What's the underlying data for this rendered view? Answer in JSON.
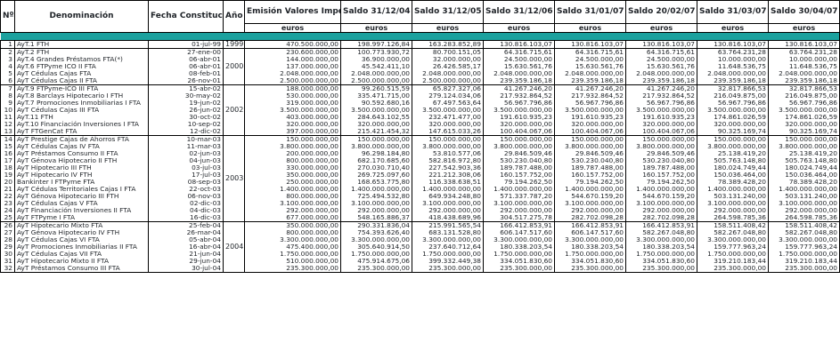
{
  "headers": {
    "num": "Nº",
    "denominacion": "Denominación",
    "fecha": "Fecha Constitución",
    "anio": "Año",
    "emision": "Emisión Valores Importe Inicial",
    "saldo1": "Saldo 31/12/04",
    "saldo2": "Saldo 31/12/05",
    "saldo3": "Saldo 31/12/06",
    "saldo4": "Saldo 31/01/07",
    "saldo5": "Saldo 20/02/07",
    "saldo6": "Saldo 31/03/07",
    "saldo7": "Saldo 30/04/07"
  },
  "unit": "euros",
  "accent_color": "#1ba19e",
  "groups": [
    {
      "year": "1999",
      "rows": [
        [
          "1",
          "AyT.1 FTH",
          "01-jul-99",
          "470.500.000,00",
          "198.997.126,84",
          "163.283.852,89",
          "130.816.103,07",
          "130.816.103,07",
          "130.816.103,07",
          "130.816.103,07",
          "130.816.103,07"
        ]
      ]
    },
    {
      "year": "2000",
      "rows": [
        [
          "2",
          "AyT.2 FTH",
          "27-ene-00",
          "230.600.000,00",
          "100.773.930,72",
          "80.700.151,05",
          "64.316.715,61",
          "64.316.715,61",
          "64.316.715,61",
          "63.764.231,28",
          "63.764.231,28"
        ],
        [
          "3",
          "AyT.4 Grandes Préstamos FTA(*)",
          "06-abr-01",
          "144.000.000,00",
          "36.900.000,00",
          "32.000.000,00",
          "24.500.000,00",
          "24.500.000,00",
          "24.500.000,00",
          "10.000.000,00",
          "10.000.000,00"
        ],
        [
          "4",
          "AyT.6 FTPyme ICO II FTA",
          "06-abr-01",
          "137.000.000,00",
          "45.542.411,10",
          "26.426.585,17",
          "15.630.561,76",
          "15.630.561,76",
          "15.630.561,76",
          "11.648.536,75",
          "11.648.536,75"
        ],
        [
          "5",
          "AyT Cédulas Cajas FTA",
          "08-feb-01",
          "2.048.000.000,00",
          "2.048.000.000,00",
          "2.048.000.000,00",
          "2.048.000.000,00",
          "2.048.000.000,00",
          "2.048.000.000,00",
          "2.048.000.000,00",
          "2.048.000.000,00"
        ],
        [
          "6",
          "AyT Cédulas Cajas II FTA",
          "26-nov-01",
          "2.500.000.000,00",
          "2.500.000.000,00",
          "2.500.000.000,00",
          "239.359.186,18",
          "239.359.186,18",
          "239.359.186,18",
          "239.359.186,18",
          "239.359.186,18"
        ]
      ]
    },
    {
      "year": "2002",
      "rows": [
        [
          "7",
          "AyT.9 FTPyme-ICO III FTA",
          "15-abr-02",
          "188.000.000,00",
          "99.260.515,59",
          "65.827.327,06",
          "41.267.246,20",
          "41.267.246,20",
          "41.267.246,20",
          "32.817.866,53",
          "32.817.866,53"
        ],
        [
          "8",
          "AyT.8 Barclays Hipotecario I FTH",
          "30-may-02",
          "530.000.000,00",
          "335.471.715,00",
          "279.124.034,06",
          "217.932.864,52",
          "217.932.864,52",
          "217.932.864,52",
          "216.049.875,00",
          "216.049.875,00"
        ],
        [
          "9",
          "AyT.7 Promociones Inmobiliarias I FTA",
          "19-jun-02",
          "319.000.000,00",
          "90.592.680,16",
          "67.497.563,64",
          "56.967.796,86",
          "56.967.796,86",
          "56.967.796,86",
          "56.967.796,86",
          "56.967.796,86"
        ],
        [
          "10",
          "AyT Cédulas Cajas III FTA",
          "26-jun-02",
          "3.500.000.000,00",
          "3.500.000.000,00",
          "3.500.000.000,00",
          "3.500.000.000,00",
          "3.500.000.000,00",
          "3.500.000.000,00",
          "3.500.000.000,00",
          "3.500.000.000,00"
        ],
        [
          "11",
          "AyT.11 FTH",
          "30-oct-02",
          "403.000.000,00",
          "284.643.102,55",
          "232.471.477,00",
          "191.610.935,23",
          "191.610.935,23",
          "191.610.935,23",
          "174.861.026,59",
          "174.861.026,59"
        ],
        [
          "12",
          "AyT.10 Financiación Inversiones I FTA",
          "10-sep-02",
          "320.000.000,00",
          "320.000.000,00",
          "320.000.000,00",
          "320.000.000,00",
          "320.000.000,00",
          "320.000.000,00",
          "320.000.000,00",
          "320.000.000,00"
        ],
        [
          "13",
          "AyT FTGenCat FTA",
          "12-dic-02",
          "397.000.000,00",
          "215.421.454,32",
          "147.615.033,26",
          "100.404.067,06",
          "100.404.067,06",
          "100.404.067,06",
          "90.325.169,74",
          "90.325.169,74"
        ]
      ]
    },
    {
      "year": "2003",
      "rows": [
        [
          "14",
          "AyT Prestige Cajas de Ahorros FTA",
          "10-mar-03",
          "150.000.000,00",
          "150.000.000,00",
          "150.000.000,00",
          "150.000.000,00",
          "150.000.000,00",
          "150.000.000,00",
          "150.000.000,00",
          "150.000.000,00"
        ],
        [
          "15",
          "AyT Cédulas Cajas IV FTA",
          "11-mar-03",
          "3.800.000.000,00",
          "3.800.000.000,00",
          "3.800.000.000,00",
          "3.800.000.000,00",
          "3.800.000.000,00",
          "3.800.000.000,00",
          "3.800.000.000,00",
          "3.800.000.000,00"
        ],
        [
          "16",
          "AyT Préstamos Consumo II FTA",
          "02-jun-03",
          "200.000.000,00",
          "96.298.184,80",
          "53.810.577,06",
          "29.846.509,46",
          "29.846.509,46",
          "29.846.509,46",
          "25.138.419,20",
          "25.138.419,20"
        ],
        [
          "17",
          "AyT Génova Hipotecario II FTH",
          "04-jun-03",
          "800.000.000,00",
          "682.170.685,60",
          "582.816.972,80",
          "530.230.040,80",
          "530.230.040,80",
          "530.230.040,80",
          "505.763.148,80",
          "505.763.148,80"
        ],
        [
          "18",
          "AyT Hipotecario III FTH",
          "03-jul-03",
          "330.000.000,00",
          "270.030.710,40",
          "227.542.903,36",
          "189.787.488,00",
          "189.787.488,00",
          "189.787.488,00",
          "180.024.749,44",
          "180.024.749,44"
        ],
        [
          "19",
          "AyT Hipotecario IV FTH",
          "17-jul-03",
          "350.000.000,00",
          "269.725.097,60",
          "221.212.308,06",
          "160.157.752,00",
          "160.157.752,00",
          "160.157.752,00",
          "150.036.464,00",
          "150.036.464,00"
        ],
        [
          "20",
          "Bankinter I FTPyme FTA",
          "08-sep-03",
          "250.000.000,00",
          "168.653.775,80",
          "116.338.638,51",
          "79.194.262,50",
          "79.194.262,50",
          "79.194.262,50",
          "78.389.428,20",
          "78.389.428,20"
        ],
        [
          "21",
          "AyT Cédulas Territoriales Cajas I FTA",
          "22-oct-03",
          "1.400.000.000,00",
          "1.400.000.000,00",
          "1.400.000.000,00",
          "1.400.000.000,00",
          "1.400.000.000,00",
          "1.400.000.000,00",
          "1.400.000.000,00",
          "1.400.000.000,00"
        ],
        [
          "22",
          "AyT Génova Hipotecario III FTH",
          "06-nov-03",
          "800.000.000,00",
          "725.494.532,80",
          "649.934.248,80",
          "571.337.787,20",
          "544.670.159,20",
          "544.670.159,20",
          "503.131.240,00",
          "503.131.240,00"
        ],
        [
          "23",
          "AyT Cédulas Cajas V FTA",
          "02-dic-03",
          "3.100.000.000,00",
          "3.100.000.000,00",
          "3.100.000.000,00",
          "3.100.000.000,00",
          "3.100.000.000,00",
          "3.100.000.000,00",
          "3.100.000.000,00",
          "3.100.000.000,00"
        ],
        [
          "24",
          "AyT Financiación Inversiones II FTA",
          "04-dic-03",
          "292.000.000,00",
          "292.000.000,00",
          "292.000.000,00",
          "292.000.000,00",
          "292.000.000,00",
          "292.000.000,00",
          "292.000.000,00",
          "292.000.000,00"
        ],
        [
          "25",
          "AyT FTPyme I FTA",
          "16-dic-03",
          "677.000.000,00",
          "548.165.886,37",
          "418.438.689,96",
          "304.517.275,78",
          "282.702.098,28",
          "282.702.098,28",
          "264.598.785,36",
          "264.598.785,36"
        ]
      ]
    },
    {
      "year": "2004",
      "rows": [
        [
          "26",
          "AyT Hipotecario Mixto FTA",
          "25-feb-04",
          "350.000.000,00",
          "290.331.836,04",
          "215.991.565,54",
          "166.412.853,91",
          "166.412.853,91",
          "166.412.853,91",
          "158.511.408,42",
          "158.511.408,42"
        ],
        [
          "27",
          "AyT Génova Hipotecario IV FTH",
          "26-mar-04",
          "800.000.000,00",
          "754.393.626,40",
          "683.131.528,80",
          "606.147.517,60",
          "606.147.517,60",
          "582.267.048,80",
          "582.267.048,80",
          "582.267.048,80"
        ],
        [
          "28",
          "AyT Cédulas Cajas VI FTA",
          "05-abr-04",
          "3.300.000.000,00",
          "3.300.000.000,00",
          "3.300.000.000,00",
          "3.300.000.000,00",
          "3.300.000.000,00",
          "3.300.000.000,00",
          "3.300.000.000,00",
          "3.300.000.000,00"
        ],
        [
          "29",
          "AyT Promociones Inmobiliarias II FTA",
          "16-abr-04",
          "475.400.000,00",
          "305.640.914,50",
          "237.640.712,64",
          "180.338.203,54",
          "180.338.203,54",
          "180.338.203,54",
          "159.777.963,24",
          "159.777.963,24"
        ],
        [
          "30",
          "AyT Cédulas Cajas VII FTA",
          "21-jun-04",
          "1.750.000.000,00",
          "1.750.000.000,00",
          "1.750.000.000,00",
          "1.750.000.000,00",
          "1.750.000.000,00",
          "1.750.000.000,00",
          "1.750.000.000,00",
          "1.750.000.000,00"
        ],
        [
          "31",
          "AyT Hipotecario Mixto II FTA",
          "29-jun-04",
          "510.000.000,00",
          "475.914.675,06",
          "399.332.449,38",
          "334.051.830,60",
          "334.051.830,60",
          "334.051.830,60",
          "319.210.183,44",
          "319.210.183,44"
        ],
        [
          "32",
          "AyT Préstamos Consumo III FTA",
          "30-jul-04",
          "235.300.000,00",
          "235.300.000,00",
          "235.300.000,00",
          "235.300.000,00",
          "235.300.000,00",
          "235.300.000,00",
          "235.300.000,00",
          "235.300.000,00"
        ]
      ]
    }
  ]
}
